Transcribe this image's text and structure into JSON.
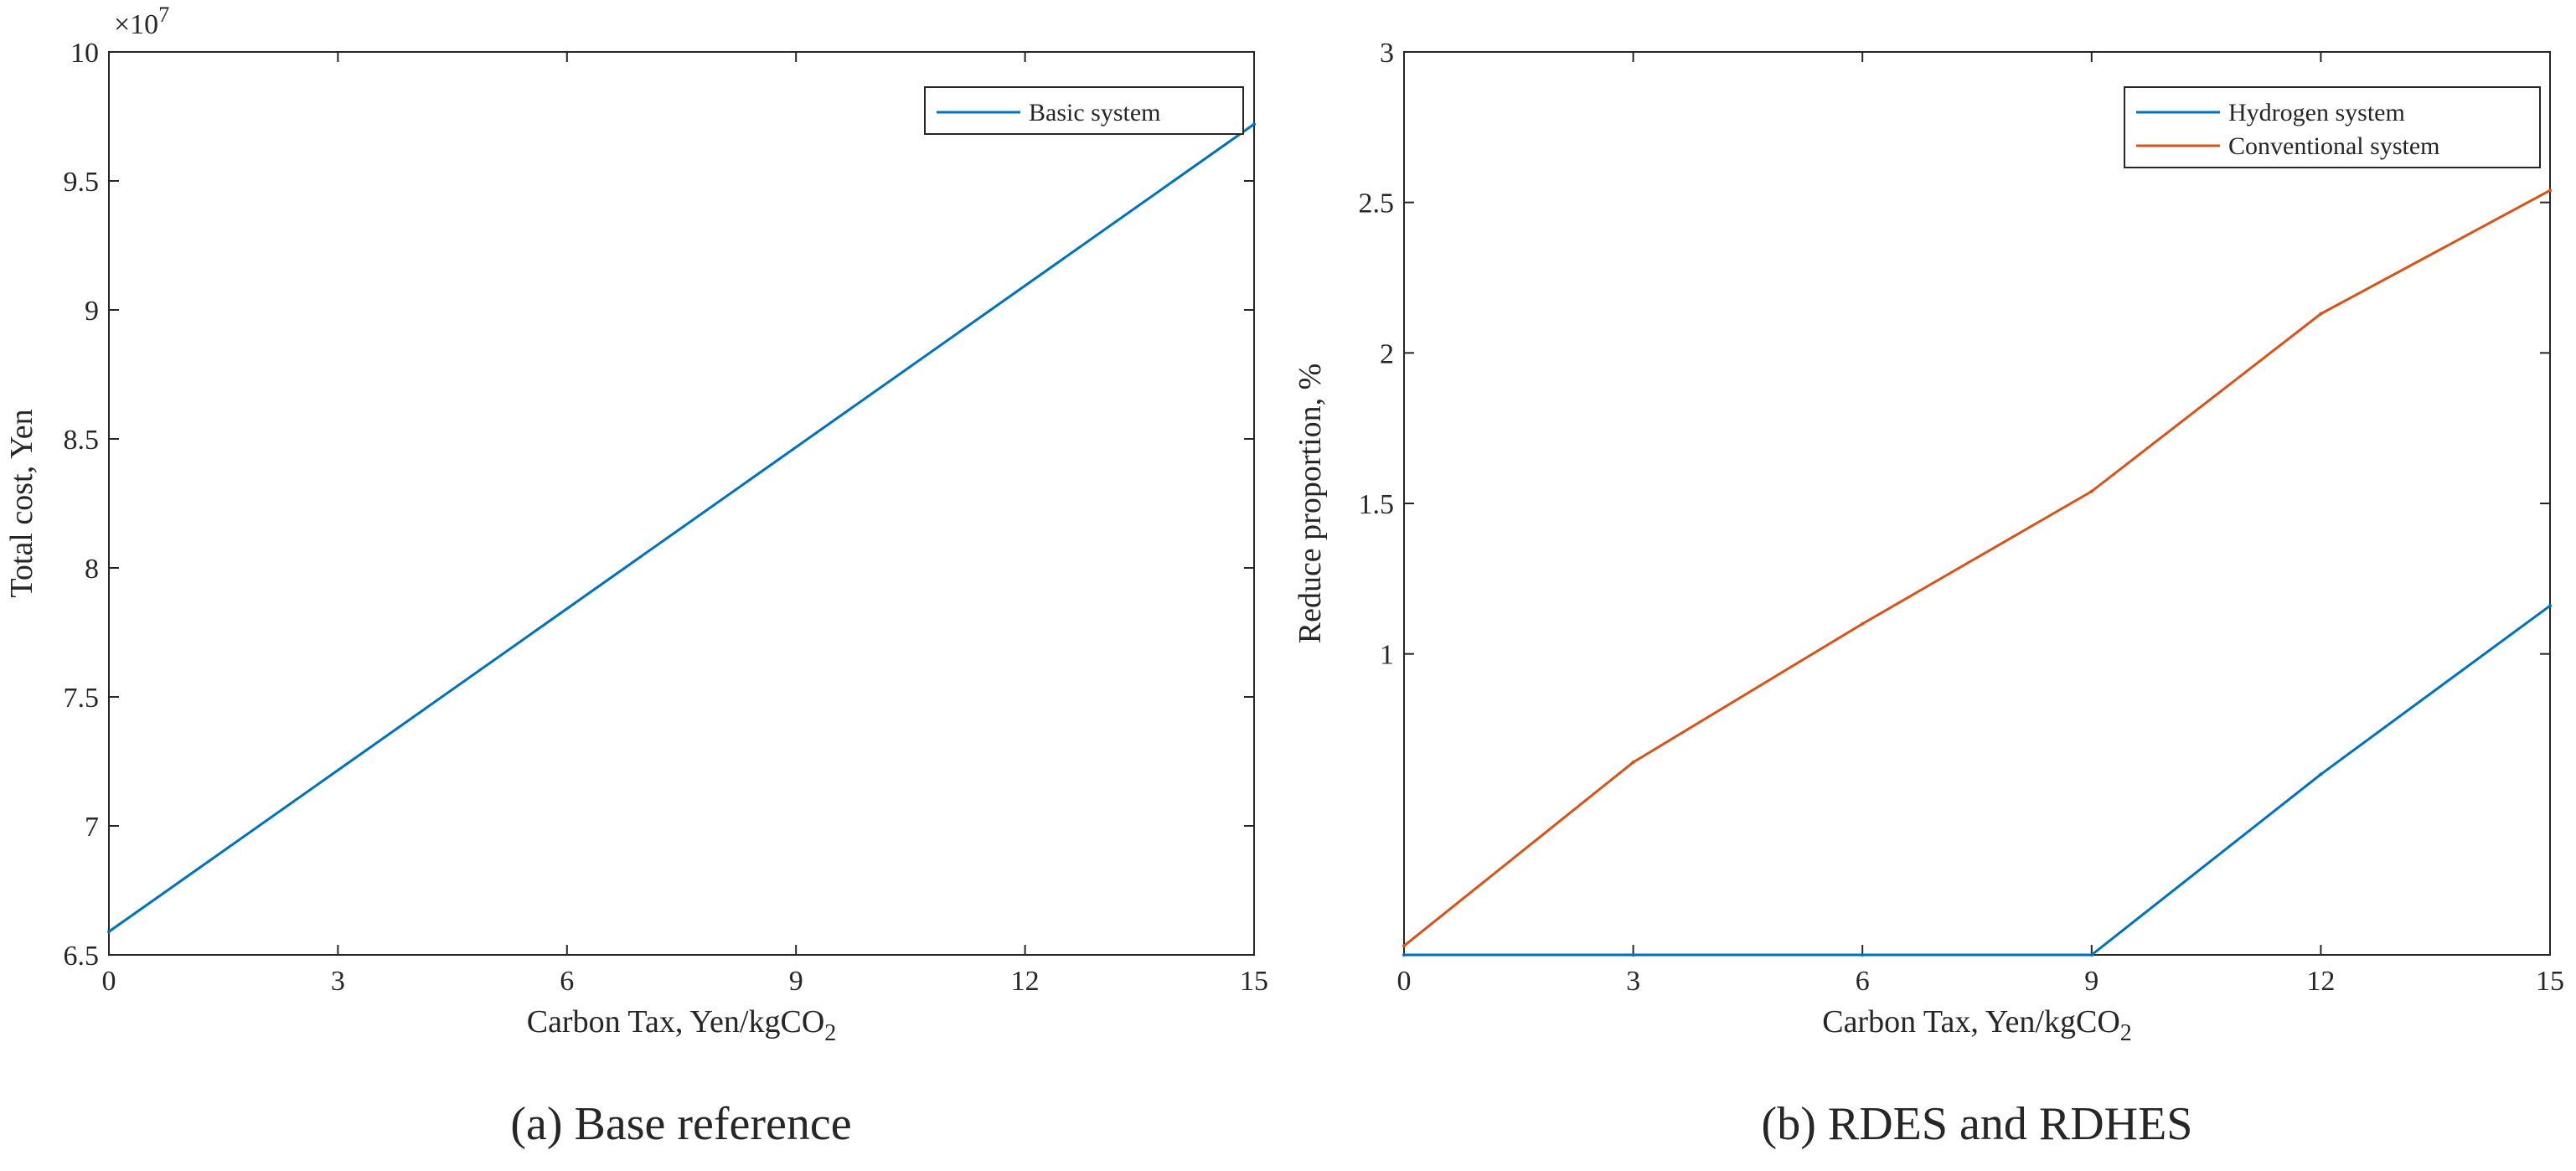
{
  "chart_data": [
    {
      "id": "a",
      "type": "line",
      "caption": "(a)  Base reference",
      "x": [
        0,
        15
      ],
      "series": [
        {
          "name": "Basic system",
          "color": "#0072BD",
          "values": [
            6.59,
            9.72
          ]
        }
      ],
      "xlabel": "Carbon Tax, Yen/kgCO",
      "xlabel_sub": "2",
      "ylabel": "Total cost, Yen",
      "y_exponent": "×10",
      "y_exponent_power": "7",
      "xlim": [
        0,
        15
      ],
      "ylim": [
        6.5,
        10
      ],
      "xticks": [
        0,
        3,
        6,
        9,
        12,
        15
      ],
      "yticks": [
        6.5,
        7,
        7.5,
        8,
        8.5,
        9,
        9.5,
        10
      ],
      "xtick_labels": [
        "0",
        "3",
        "6",
        "9",
        "12",
        "15"
      ],
      "ytick_labels": [
        "6.5",
        "7",
        "7.5",
        "8",
        "8.5",
        "9",
        "9.5",
        "10"
      ],
      "legend_position": "top-right"
    },
    {
      "id": "b",
      "type": "line",
      "caption": "(b)  RDES and RDHES",
      "x": [
        0,
        3,
        6,
        9,
        12,
        15
      ],
      "series": [
        {
          "name": "Hydrogen system",
          "color": "#0072BD",
          "values": [
            0.0,
            0.0,
            0.0,
            0.0,
            0.6,
            1.16
          ]
        },
        {
          "name": "Conventional system",
          "color": "#D95319",
          "values": [
            0.03,
            0.64,
            1.1,
            1.54,
            2.13,
            2.54
          ]
        }
      ],
      "xlabel": "Carbon Tax, Yen/kgCO",
      "xlabel_sub": "2",
      "ylabel": "Reduce proportion, %",
      "xlim": [
        0,
        15
      ],
      "ylim": [
        0,
        3
      ],
      "xticks": [
        0,
        3,
        6,
        9,
        12,
        15
      ],
      "yticks": [
        1,
        1.5,
        2,
        2.5,
        3
      ],
      "xtick_labels": [
        "0",
        "3",
        "6",
        "9",
        "12",
        "15"
      ],
      "ytick_labels": [
        "1",
        "1.5",
        "2",
        "2.5",
        "3"
      ],
      "legend_position": "top-right"
    }
  ]
}
